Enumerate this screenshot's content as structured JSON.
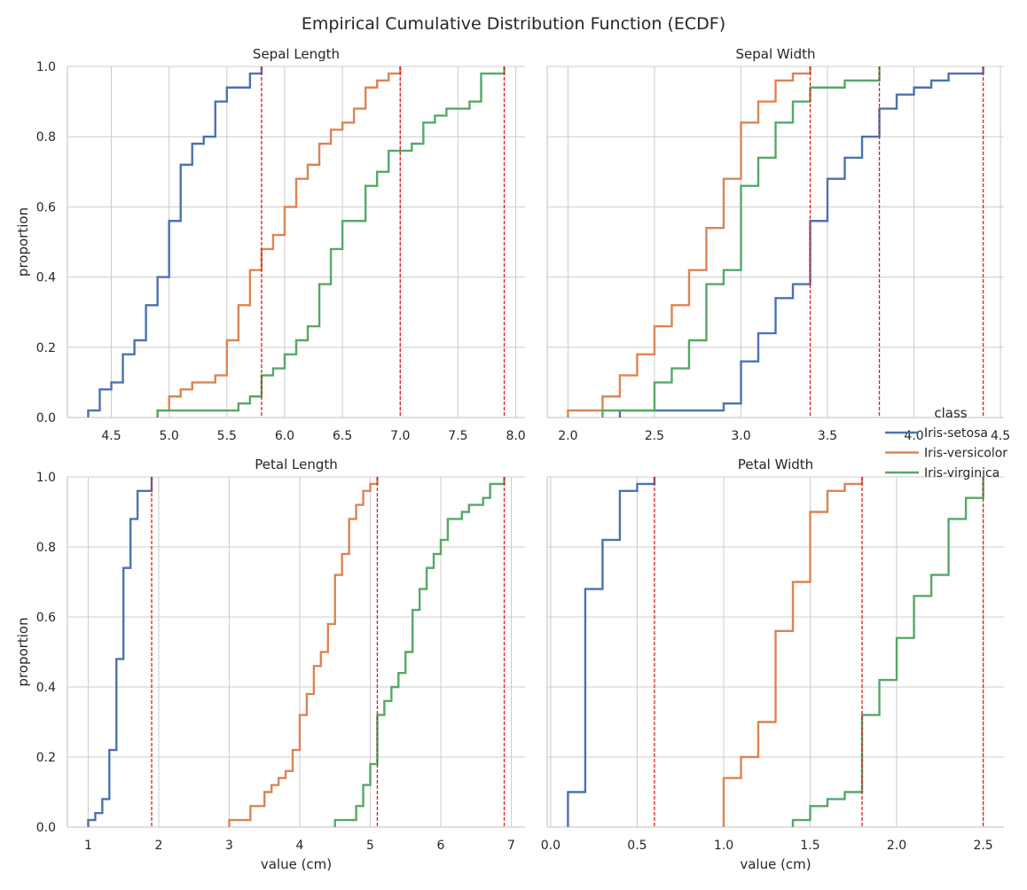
{
  "title": "Empirical Cumulative Distribution Function (ECDF)",
  "legend": {
    "title": "class",
    "entries": [
      {
        "label": "Iris-setosa",
        "color": "#4c72b0"
      },
      {
        "label": "Iris-versicolor",
        "color": "#dd8452"
      },
      {
        "label": "Iris-virginica",
        "color": "#55a868"
      }
    ]
  },
  "chart_data": [
    {
      "type": "line",
      "title": "Sepal Length",
      "xlabel": "",
      "ylabel": "proportion",
      "xlim": [
        4.12,
        8.08
      ],
      "ylim": [
        0,
        1
      ],
      "xticks": [
        4.5,
        5.0,
        5.5,
        6.0,
        6.5,
        7.0,
        7.5,
        8.0
      ],
      "xtick_labels": [
        "4.5",
        "5.0",
        "5.5",
        "6.0",
        "6.5",
        "7.0",
        "7.5",
        "8.0"
      ],
      "yticks": [
        0,
        0.2,
        0.4,
        0.6,
        0.8,
        1.0
      ],
      "ytick_labels": [
        "0.0",
        "0.2",
        "0.4",
        "0.6",
        "0.8",
        "1.0"
      ],
      "grid": true,
      "series": [
        {
          "name": "Iris-setosa",
          "color": "#4c72b0",
          "x": [
            4.3,
            4.4,
            4.5,
            4.6,
            4.7,
            4.8,
            4.9,
            5.0,
            5.1,
            5.2,
            5.3,
            5.4,
            5.5,
            5.7,
            5.8
          ],
          "y": [
            0.02,
            0.08,
            0.1,
            0.18,
            0.22,
            0.32,
            0.4,
            0.56,
            0.72,
            0.78,
            0.8,
            0.9,
            0.94,
            0.98,
            1.0
          ]
        },
        {
          "name": "Iris-versicolor",
          "color": "#dd8452",
          "x": [
            4.9,
            5.0,
            5.1,
            5.2,
            5.4,
            5.5,
            5.6,
            5.7,
            5.8,
            5.9,
            6.0,
            6.1,
            6.2,
            6.3,
            6.4,
            6.5,
            6.6,
            6.7,
            6.8,
            6.9,
            7.0
          ],
          "y": [
            0.02,
            0.06,
            0.08,
            0.1,
            0.12,
            0.22,
            0.32,
            0.42,
            0.48,
            0.52,
            0.6,
            0.68,
            0.72,
            0.78,
            0.82,
            0.84,
            0.88,
            0.94,
            0.96,
            0.98,
            1.0
          ]
        },
        {
          "name": "Iris-virginica",
          "color": "#55a868",
          "x": [
            4.9,
            5.6,
            5.7,
            5.8,
            5.9,
            6.0,
            6.1,
            6.2,
            6.3,
            6.4,
            6.5,
            6.7,
            6.8,
            6.9,
            7.1,
            7.2,
            7.3,
            7.4,
            7.6,
            7.7,
            7.9
          ],
          "y": [
            0.02,
            0.04,
            0.06,
            0.12,
            0.14,
            0.18,
            0.22,
            0.26,
            0.38,
            0.48,
            0.56,
            0.66,
            0.7,
            0.76,
            0.78,
            0.84,
            0.86,
            0.88,
            0.9,
            0.98,
            1.0
          ]
        }
      ],
      "max_lines": [
        5.8,
        7.0,
        7.9
      ]
    },
    {
      "type": "line",
      "title": "Sepal Width",
      "xlabel": "",
      "ylabel": "",
      "xlim": [
        1.88,
        4.52
      ],
      "ylim": [
        0,
        1
      ],
      "xticks": [
        2.0,
        2.5,
        3.0,
        3.5,
        4.0,
        4.5
      ],
      "xtick_labels": [
        "2.0",
        "2.5",
        "3.0",
        "3.5",
        "4.0",
        "4.5"
      ],
      "yticks": [
        0,
        0.2,
        0.4,
        0.6,
        0.8,
        1.0
      ],
      "ytick_labels": [],
      "grid": true,
      "series": [
        {
          "name": "Iris-setosa",
          "color": "#4c72b0",
          "x": [
            2.3,
            2.9,
            3.0,
            3.1,
            3.2,
            3.3,
            3.4,
            3.5,
            3.6,
            3.7,
            3.8,
            3.9,
            4.0,
            4.1,
            4.2,
            4.4
          ],
          "y": [
            0.02,
            0.04,
            0.16,
            0.24,
            0.34,
            0.38,
            0.56,
            0.68,
            0.74,
            0.8,
            0.88,
            0.92,
            0.94,
            0.96,
            0.98,
            1.0
          ]
        },
        {
          "name": "Iris-versicolor",
          "color": "#dd8452",
          "x": [
            2.0,
            2.2,
            2.3,
            2.4,
            2.5,
            2.6,
            2.7,
            2.8,
            2.9,
            3.0,
            3.1,
            3.2,
            3.3,
            3.4
          ],
          "y": [
            0.02,
            0.06,
            0.12,
            0.18,
            0.26,
            0.32,
            0.42,
            0.54,
            0.68,
            0.84,
            0.9,
            0.96,
            0.98,
            1.0
          ]
        },
        {
          "name": "Iris-virginica",
          "color": "#55a868",
          "x": [
            2.2,
            2.5,
            2.6,
            2.7,
            2.8,
            2.9,
            3.0,
            3.1,
            3.2,
            3.3,
            3.4,
            3.6,
            3.8
          ],
          "y": [
            0.02,
            0.1,
            0.14,
            0.22,
            0.38,
            0.42,
            0.66,
            0.74,
            0.84,
            0.9,
            0.94,
            0.96,
            1.0
          ]
        }
      ],
      "max_lines": [
        3.4,
        3.8,
        4.4
      ]
    },
    {
      "type": "line",
      "title": "Petal Length",
      "xlabel": "value (cm)",
      "ylabel": "proportion",
      "xlim": [
        0.705,
        7.195
      ],
      "ylim": [
        0,
        1
      ],
      "xticks": [
        1,
        2,
        3,
        4,
        5,
        6,
        7
      ],
      "xtick_labels": [
        "1",
        "2",
        "3",
        "4",
        "5",
        "6",
        "7"
      ],
      "yticks": [
        0,
        0.2,
        0.4,
        0.6,
        0.8,
        1.0
      ],
      "ytick_labels": [
        "0.0",
        "0.2",
        "0.4",
        "0.6",
        "0.8",
        "1.0"
      ],
      "grid": true,
      "series": [
        {
          "name": "Iris-setosa",
          "color": "#4c72b0",
          "x": [
            1.0,
            1.1,
            1.2,
            1.3,
            1.4,
            1.5,
            1.6,
            1.7,
            1.9
          ],
          "y": [
            0.02,
            0.04,
            0.08,
            0.22,
            0.48,
            0.74,
            0.88,
            0.96,
            1.0
          ]
        },
        {
          "name": "Iris-versicolor",
          "color": "#dd8452",
          "x": [
            3.0,
            3.3,
            3.5,
            3.6,
            3.7,
            3.8,
            3.9,
            4.0,
            4.1,
            4.2,
            4.3,
            4.4,
            4.5,
            4.6,
            4.7,
            4.8,
            4.9,
            5.0,
            5.1
          ],
          "y": [
            0.02,
            0.06,
            0.1,
            0.12,
            0.14,
            0.16,
            0.22,
            0.32,
            0.38,
            0.46,
            0.5,
            0.58,
            0.72,
            0.78,
            0.88,
            0.92,
            0.96,
            0.98,
            1.0
          ]
        },
        {
          "name": "Iris-virginica",
          "color": "#55a868",
          "x": [
            4.5,
            4.8,
            4.9,
            5.0,
            5.1,
            5.2,
            5.3,
            5.4,
            5.5,
            5.6,
            5.7,
            5.8,
            5.9,
            6.0,
            6.1,
            6.3,
            6.4,
            6.6,
            6.7,
            6.9
          ],
          "y": [
            0.02,
            0.06,
            0.12,
            0.18,
            0.32,
            0.36,
            0.4,
            0.44,
            0.5,
            0.62,
            0.68,
            0.74,
            0.78,
            0.82,
            0.88,
            0.9,
            0.92,
            0.94,
            0.98,
            1.0
          ]
        }
      ],
      "max_lines": [
        1.9,
        5.1,
        6.9
      ]
    },
    {
      "type": "line",
      "title": "Petal Width",
      "xlabel": "value (cm)",
      "ylabel": "",
      "xlim": [
        -0.02,
        2.62
      ],
      "ylim": [
        0,
        1
      ],
      "xticks": [
        0.0,
        0.5,
        1.0,
        1.5,
        2.0,
        2.5
      ],
      "xtick_labels": [
        "0.0",
        "0.5",
        "1.0",
        "1.5",
        "2.0",
        "2.5"
      ],
      "yticks": [
        0,
        0.2,
        0.4,
        0.6,
        0.8,
        1.0
      ],
      "ytick_labels": [],
      "grid": true,
      "series": [
        {
          "name": "Iris-setosa",
          "color": "#4c72b0",
          "x": [
            0.1,
            0.2,
            0.3,
            0.4,
            0.5,
            0.6
          ],
          "y": [
            0.1,
            0.68,
            0.82,
            0.96,
            0.98,
            1.0
          ]
        },
        {
          "name": "Iris-versicolor",
          "color": "#dd8452",
          "x": [
            1.0,
            1.1,
            1.2,
            1.3,
            1.4,
            1.5,
            1.6,
            1.7,
            1.8
          ],
          "y": [
            0.14,
            0.2,
            0.3,
            0.56,
            0.7,
            0.9,
            0.96,
            0.98,
            1.0
          ]
        },
        {
          "name": "Iris-virginica",
          "color": "#55a868",
          "x": [
            1.4,
            1.5,
            1.6,
            1.7,
            1.8,
            1.9,
            2.0,
            2.1,
            2.2,
            2.3,
            2.4,
            2.5
          ],
          "y": [
            0.02,
            0.06,
            0.08,
            0.1,
            0.32,
            0.42,
            0.54,
            0.66,
            0.72,
            0.88,
            0.94,
            1.0
          ]
        }
      ],
      "max_lines": [
        0.6,
        1.8,
        2.5
      ]
    }
  ]
}
